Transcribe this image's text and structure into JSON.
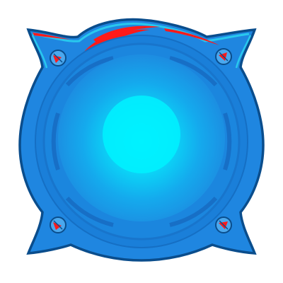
{
  "icon": {
    "name": "blue-speaker-grille-icon",
    "colors": {
      "outline": "#0a4d8c",
      "body": "#1f86e0",
      "body_light": "#33a6f0",
      "rim_highlight": "#28c8ee",
      "center_glow": "#00f2ff",
      "center_mid": "#10c6f4",
      "accent": "#ff1a1a",
      "screw_face": "#4aa8ee"
    },
    "screws": [
      "top-left",
      "top-right",
      "bottom-left",
      "bottom-right"
    ]
  }
}
